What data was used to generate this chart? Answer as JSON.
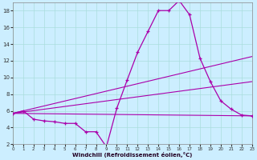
{
  "xlabel": "Windchill (Refroidissement éolien,°C)",
  "bg_color": "#cceeff",
  "line_color": "#aa00aa",
  "grid_color": "#aadddd",
  "xlim": [
    0,
    23
  ],
  "ylim": [
    2,
    19
  ],
  "xticks": [
    0,
    1,
    2,
    3,
    4,
    5,
    6,
    7,
    8,
    9,
    10,
    11,
    12,
    13,
    14,
    15,
    16,
    17,
    18,
    19,
    20,
    21,
    22,
    23
  ],
  "yticks": [
    2,
    4,
    6,
    8,
    10,
    12,
    14,
    16,
    18
  ],
  "line1_x": [
    0,
    1,
    2,
    3,
    4,
    5,
    6,
    7,
    8,
    9,
    10,
    11,
    12,
    13,
    14,
    15,
    16,
    17,
    18,
    19,
    20,
    21,
    22,
    23
  ],
  "line1_y": [
    5.7,
    6.0,
    5.0,
    4.8,
    4.7,
    4.5,
    4.5,
    3.5,
    3.5,
    1.7,
    6.3,
    9.7,
    13.0,
    15.5,
    18.0,
    18.0,
    19.2,
    17.5,
    12.3,
    9.5,
    7.2,
    6.2,
    5.5,
    5.4
  ],
  "line2_x": [
    0,
    23
  ],
  "line2_y": [
    5.7,
    5.4
  ],
  "line3_x": [
    0,
    23
  ],
  "line3_y": [
    5.7,
    12.5
  ],
  "line4_x": [
    0,
    23
  ],
  "line4_y": [
    5.7,
    9.5
  ]
}
